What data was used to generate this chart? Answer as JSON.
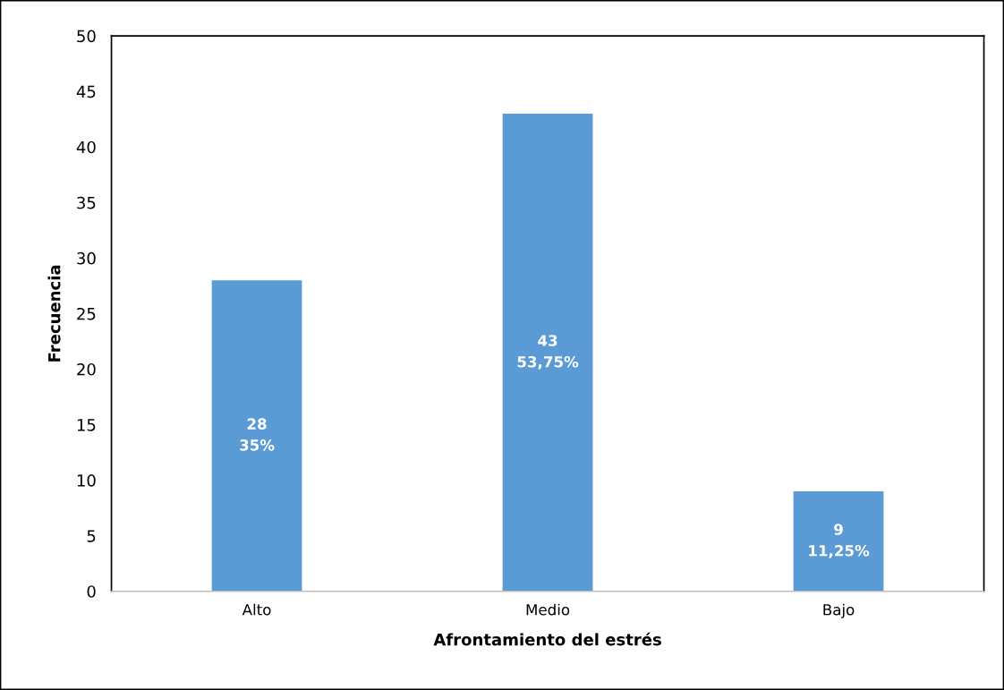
{
  "chart_data": {
    "type": "bar",
    "xlabel": "Afrontamiento del estrés",
    "ylabel": "Frecuencia",
    "categories": [
      "Alto",
      "Medio",
      "Bajo"
    ],
    "values": [
      28,
      43,
      9
    ],
    "value_labels": [
      "28\n35%",
      "43\n53,75%",
      "9\n11,25%"
    ],
    "color": "#5b9bd5",
    "ylim": [
      0,
      50
    ],
    "yticks": [
      0,
      5,
      10,
      15,
      20,
      25,
      30,
      35,
      40,
      45,
      50
    ],
    "grid": false
  }
}
